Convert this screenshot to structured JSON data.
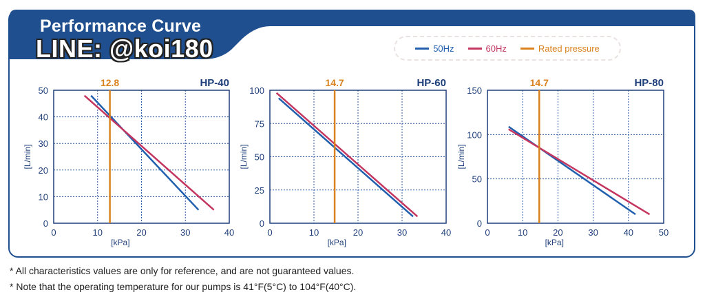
{
  "header": {
    "title": "Performance Curve",
    "watermark": "LINE: @koi180"
  },
  "legend": {
    "items": [
      {
        "label": "50Hz",
        "color": "#1f5fae"
      },
      {
        "label": "60Hz",
        "color": "#c4365f"
      },
      {
        "label": "Rated pressure",
        "color": "#d9821e"
      }
    ]
  },
  "notes": [
    "* All characteristics values are only for reference, and are not guaranteed values.",
    "* Note that the operating temperature for our pumps is 41°F(5°C) to 104°F(40°C)."
  ],
  "chart_data": [
    {
      "type": "line",
      "title": "HP-40",
      "xlabel": "[kPa]",
      "ylabel": "[L/min]",
      "xlim": [
        0,
        40
      ],
      "ylim": [
        0,
        50
      ],
      "xticks": [
        0,
        10,
        20,
        30,
        40
      ],
      "yticks": [
        0,
        10,
        20,
        30,
        40,
        50
      ],
      "grid": true,
      "rated_pressure": 12.8,
      "rated_label": "12.8",
      "series": [
        {
          "name": "50Hz",
          "x": [
            8.5,
            33
          ],
          "y": [
            48,
            5
          ]
        },
        {
          "name": "60Hz",
          "x": [
            7,
            36.5
          ],
          "y": [
            48,
            5
          ]
        }
      ]
    },
    {
      "type": "line",
      "title": "HP-60",
      "xlabel": "[kPa]",
      "ylabel": "[L/min]",
      "xlim": [
        0,
        40
      ],
      "ylim": [
        0,
        100
      ],
      "xticks": [
        0,
        10,
        20,
        30,
        40
      ],
      "yticks": [
        0,
        25,
        50,
        75,
        100
      ],
      "grid": true,
      "rated_pressure": 14.7,
      "rated_label": "14.7",
      "series": [
        {
          "name": "50Hz",
          "x": [
            2,
            32.5
          ],
          "y": [
            94,
            5
          ]
        },
        {
          "name": "60Hz",
          "x": [
            1.5,
            33.5
          ],
          "y": [
            98,
            5
          ]
        }
      ]
    },
    {
      "type": "line",
      "title": "HP-80",
      "xlabel": "[kPa]",
      "ylabel": "[L/min]",
      "xlim": [
        0,
        50
      ],
      "ylim": [
        0,
        150
      ],
      "xticks": [
        0,
        10,
        20,
        30,
        40,
        50
      ],
      "yticks": [
        0,
        50,
        100,
        150
      ],
      "grid": true,
      "rated_pressure": 14.7,
      "rated_label": "14.7",
      "series": [
        {
          "name": "50Hz",
          "x": [
            6,
            42
          ],
          "y": [
            109,
            10
          ]
        },
        {
          "name": "60Hz",
          "x": [
            6,
            46
          ],
          "y": [
            106,
            10
          ]
        }
      ]
    }
  ]
}
